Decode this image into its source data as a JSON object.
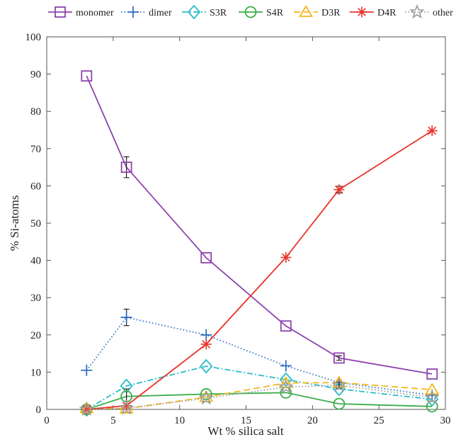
{
  "chart_data": {
    "type": "line",
    "xlabel": "Wt % silica salt",
    "ylabel": "% Si-atoms",
    "xlim": [
      0,
      30
    ],
    "ylim": [
      0,
      100
    ],
    "x_ticks": [
      "0",
      "5",
      "10",
      "15",
      "20",
      "25",
      "30"
    ],
    "y_ticks": [
      "0",
      "10",
      "20",
      "30",
      "40",
      "50",
      "60",
      "70",
      "80",
      "90",
      "100"
    ],
    "grid": false,
    "legend_position": "top",
    "series": [
      {
        "name": "monomer",
        "color": "#8e44ad",
        "dash": "solid",
        "marker": "square",
        "x": [
          3,
          6,
          12,
          18,
          22,
          29
        ],
        "y": [
          89.5,
          65,
          40.7,
          22.4,
          13.8,
          9.5
        ],
        "err": [
          0,
          2.8,
          0,
          0,
          0.6,
          0
        ]
      },
      {
        "name": "dimer",
        "color": "#2f6fbf",
        "dash": "dotted",
        "marker": "plus",
        "x": [
          3,
          6,
          12,
          18,
          22,
          29
        ],
        "y": [
          10.5,
          24.7,
          20,
          11.7,
          7.2,
          3.8
        ],
        "err": [
          0,
          2.2,
          0,
          0,
          0.5,
          0
        ]
      },
      {
        "name": "S3R",
        "color": "#2bbcc8",
        "dash": "dashdot",
        "marker": "diamond",
        "x": [
          3,
          6,
          12,
          18,
          22,
          29
        ],
        "y": [
          0,
          6.3,
          11.6,
          8,
          5.5,
          2.7
        ],
        "err": [
          0,
          0,
          0,
          0,
          0,
          0
        ]
      },
      {
        "name": "S4R",
        "color": "#3cae4a",
        "dash": "solid",
        "marker": "circle",
        "x": [
          3,
          6,
          12,
          18,
          22,
          29
        ],
        "y": [
          0,
          3.5,
          4.1,
          4.5,
          1.5,
          0.8
        ],
        "err": [
          0,
          2.0,
          0,
          0,
          0,
          0
        ]
      },
      {
        "name": "D3R",
        "color": "#f5b81c",
        "dash": "dashed",
        "marker": "triangle",
        "x": [
          3,
          6,
          12,
          18,
          22,
          29
        ],
        "y": [
          0.3,
          0.2,
          3.3,
          7.1,
          7.2,
          5.3
        ],
        "err": [
          0,
          0,
          0,
          0,
          0,
          0
        ]
      },
      {
        "name": "D4R",
        "color": "#e8352c",
        "dash": "solid",
        "marker": "asterisk",
        "x": [
          3,
          6,
          12,
          18,
          22,
          29
        ],
        "y": [
          0,
          1,
          17.5,
          40.8,
          59,
          74.8
        ],
        "err": [
          0,
          0,
          0,
          0,
          0.9,
          0
        ]
      },
      {
        "name": "other",
        "color": "#9a9a9a",
        "dash": "dotted",
        "marker": "star",
        "x": [
          3,
          6,
          12,
          18,
          22,
          29
        ],
        "y": [
          0,
          0.3,
          3,
          6,
          6.5,
          3.2
        ],
        "err": [
          0,
          0,
          0,
          0,
          0.8,
          0
        ]
      }
    ]
  }
}
